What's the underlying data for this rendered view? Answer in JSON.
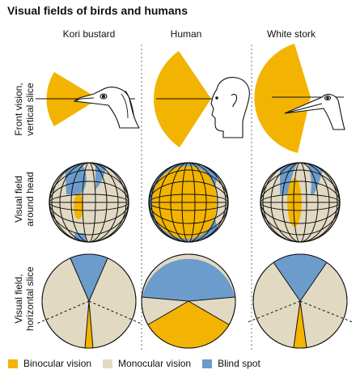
{
  "title": "Visual fields of birds and humans",
  "columns": [
    "Kori bustard",
    "Human",
    "White stork"
  ],
  "rows": [
    [
      "Front vision,",
      "vertical slice"
    ],
    [
      "Visual",
      "field",
      "around head"
    ],
    [
      "Visual field,",
      "horizontal slice"
    ]
  ],
  "legend": [
    {
      "label": "Binocular vision",
      "color": "#f2b400"
    },
    {
      "label": "Monocular vision",
      "color": "#e2d9c3"
    },
    {
      "label": "Blind spot",
      "color": "#6b9ccc"
    }
  ],
  "colors": {
    "binocular": "#f2b400",
    "monocular": "#e2d9c3",
    "blind": "#6b9ccc"
  }
}
